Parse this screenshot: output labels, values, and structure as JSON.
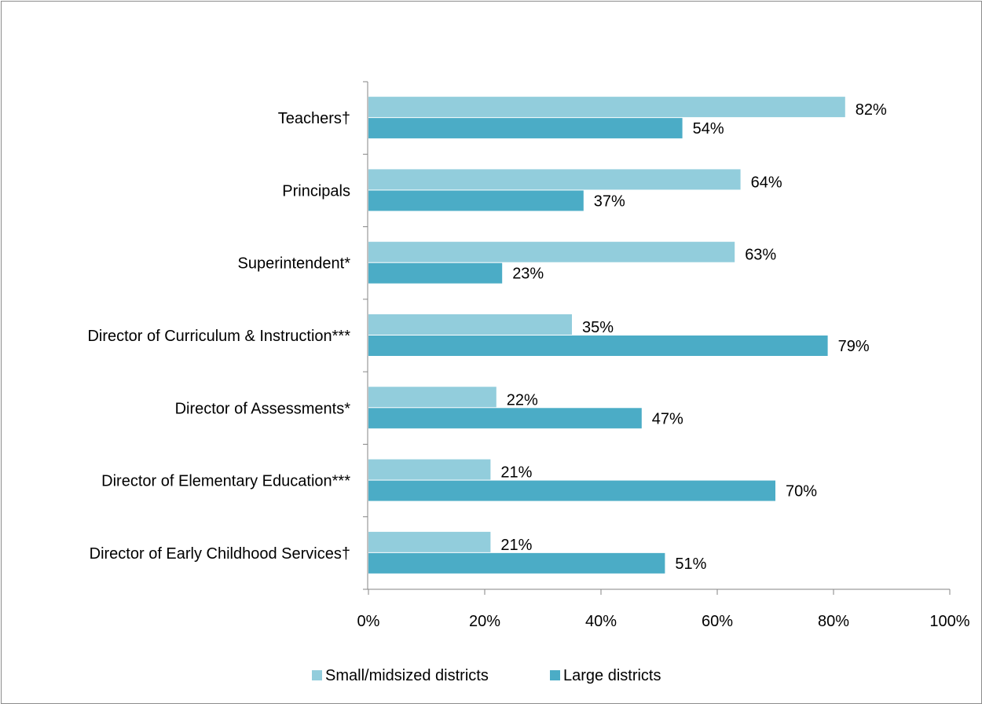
{
  "chart_data": {
    "type": "bar",
    "orientation": "horizontal",
    "categories": [
      "Teachers†",
      "Principals",
      "Superintendent*",
      "Director of Curriculum & Instruction***",
      "Director of Assessments*",
      "Director of Elementary Education***",
      "Director of Early Childhood Services†"
    ],
    "series": [
      {
        "name": "Small/midsized districts",
        "color": "#92cddc",
        "values": [
          82,
          64,
          63,
          35,
          22,
          21,
          21
        ],
        "labels": [
          "82%",
          "64%",
          "63%",
          "35%",
          "22%",
          "21%",
          "21%"
        ]
      },
      {
        "name": "Large districts",
        "color": "#4bacc6",
        "values": [
          54,
          37,
          23,
          79,
          47,
          70,
          51
        ],
        "labels": [
          "54%",
          "37%",
          "23%",
          "79%",
          "47%",
          "70%",
          "51%"
        ]
      }
    ],
    "xlim": [
      0,
      100
    ],
    "xticks": [
      "0%",
      "20%",
      "40%",
      "60%",
      "80%",
      "100%"
    ],
    "grid": false,
    "legend_position": "bottom"
  }
}
